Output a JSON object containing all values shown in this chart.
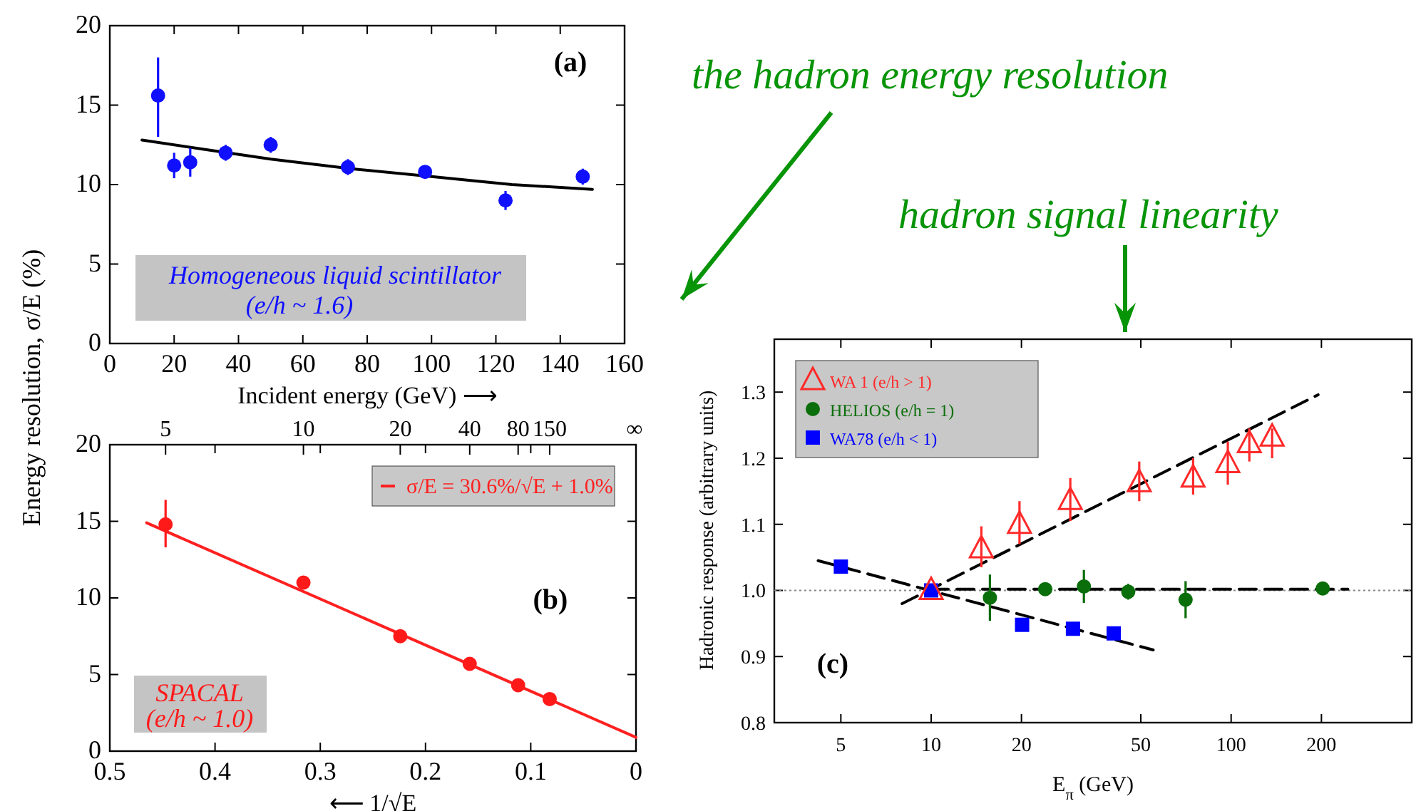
{
  "chart_data": [
    {
      "type": "scatter",
      "xlabel": "Incident energy (GeV) ⟶",
      "ylabel": "Energy resolution, σ/E (%)",
      "xlim": [
        0,
        160
      ],
      "ylim": [
        0,
        20
      ],
      "xticks": [
        0,
        20,
        40,
        60,
        80,
        100,
        120,
        140,
        160
      ],
      "yticks": [
        0,
        5,
        10,
        15,
        20
      ],
      "annotations": [
        "(a)",
        "Homogeneous liquid scintillator",
        "(e/h ~ 1.6)"
      ],
      "series": [
        {
          "type": "line",
          "color": "#000000",
          "x": [
            10,
            30,
            50,
            75,
            100,
            125,
            150
          ],
          "values": [
            12.8,
            12.2,
            11.6,
            11.0,
            10.5,
            10.0,
            9.7
          ],
          "line_style": "solid"
        },
        {
          "type": "scatter",
          "color": "#1010ff",
          "marker": "circle",
          "x": [
            15,
            20,
            25,
            36,
            50,
            74,
            98,
            123,
            147
          ],
          "values": [
            15.6,
            11.2,
            11.4,
            12.0,
            12.5,
            11.1,
            10.8,
            9.0,
            10.5
          ],
          "errors": [
            [
              13.0,
              18.0
            ],
            0.8,
            0.9,
            0.5,
            0.5,
            0.5,
            0.3,
            0.6,
            0.5
          ]
        }
      ]
    },
    {
      "type": "scatter",
      "xlabel": "⟵ 1/√E",
      "xlim": [
        0.5,
        0
      ],
      "ylim": [
        0,
        20
      ],
      "xticks": [
        0.5,
        0.4,
        0.3,
        0.2,
        0.1,
        0
      ],
      "yticks": [
        0,
        5,
        10,
        15,
        20
      ],
      "legend": "top right",
      "annotations": [
        "(b)",
        "SPACAL",
        "(e/h ~ 1.0)",
        {
          "text": "5",
          "x": 0.447
        },
        {
          "text": "10",
          "x": 0.316
        },
        {
          "text": "20",
          "x": 0.224
        },
        {
          "text": "40",
          "x": 0.158
        },
        {
          "text": "80",
          "x": 0.112
        },
        {
          "text": "150",
          "x": 0.082
        },
        "∞"
      ],
      "series": [
        {
          "type": "line",
          "name": "σ/E = 30.6%/√E + 1.0%",
          "color": "#ff2020",
          "x": [
            0.465,
            0
          ],
          "values": [
            14.9,
            0.9
          ],
          "line_style": "solid"
        },
        {
          "type": "scatter",
          "color": "#ff1a1a",
          "marker": "circle",
          "x": [
            0.447,
            0.316,
            0.224,
            0.158,
            0.112,
            0.082
          ],
          "values": [
            14.8,
            11.0,
            7.5,
            5.7,
            4.3,
            3.4
          ],
          "errors": [
            [
              13.3,
              16.4
            ],
            null,
            null,
            null,
            null,
            null
          ]
        }
      ]
    },
    {
      "type": "scatter",
      "title": "hadron signal linearity",
      "xlabel": "E$_{π}$ (GeV)",
      "ylabel": "Hadronic response (arbitrary units)",
      "log": "x",
      "xlim": [
        3,
        400
      ],
      "ylim": [
        0.8,
        1.38
      ],
      "xticks": [
        5,
        10,
        20,
        50,
        100,
        200
      ],
      "yticks": [
        0.8,
        0.9,
        {
          "value": 1,
          "label": "1.0"
        },
        1.1,
        1.2,
        1.3
      ],
      "legend": "top left",
      "annotations": [
        "(c)",
        "the hadron energy resolution"
      ],
      "ref_lines": [
        {
          "axis": "y",
          "value": 1,
          "color": "#888888",
          "line_style": "dotted"
        }
      ],
      "series": [
        {
          "type": "line",
          "color": "#000000",
          "x": [
            8,
            195
          ],
          "values": [
            0.98,
            1.296
          ],
          "line_style": "dashed"
        },
        {
          "type": "line",
          "color": "#000000",
          "x": [
            10,
            245
          ],
          "values": [
            1.002,
            1.002
          ],
          "line_style": "dashed"
        },
        {
          "type": "line",
          "color": "#000000",
          "x": [
            4.2,
            55
          ],
          "values": [
            1.045,
            0.91
          ],
          "line_style": "dashed"
        },
        {
          "type": "scatter",
          "name": "WA 1 (e/h > 1)",
          "color": "#ff2a2a",
          "marker": "triangle",
          "x": [
            10,
            14.7,
            19.7,
            29.1,
            49.4,
            74.7,
            97.5,
            115,
            137
          ],
          "values": [
            1.0,
            1.063,
            1.1,
            1.136,
            1.163,
            1.17,
            1.192,
            1.222,
            1.232
          ],
          "errors": [
            null,
            [
              1.035,
              1.097
            ],
            [
              1.07,
              1.135
            ],
            [
              1.105,
              1.17
            ],
            [
              1.135,
              1.195
            ],
            [
              1.145,
              1.2
            ],
            [
              1.16,
              1.225
            ],
            [
              1.195,
              1.245
            ],
            [
              1.2,
              1.245
            ]
          ]
        },
        {
          "type": "scatter",
          "name": "HELIOS (e/h = 1)",
          "color": "#0a6e0a",
          "marker": "circle",
          "x": [
            15.7,
            24,
            32.3,
            45.4,
            70.5,
            202
          ],
          "values": [
            0.989,
            1.002,
            1.006,
            0.998,
            0.986,
            1.003
          ],
          "errors": [
            0.035,
            0.01,
            0.025,
            0.012,
            0.028,
            0.01
          ]
        },
        {
          "type": "scatter",
          "name": "WA78 (e/h < 1)",
          "color": "#0000ff",
          "marker": "square",
          "x": [
            5,
            10,
            20.1,
            29.7,
            40.6
          ],
          "values": [
            1.036,
            1.0,
            0.948,
            0.942,
            0.935
          ]
        }
      ]
    }
  ]
}
